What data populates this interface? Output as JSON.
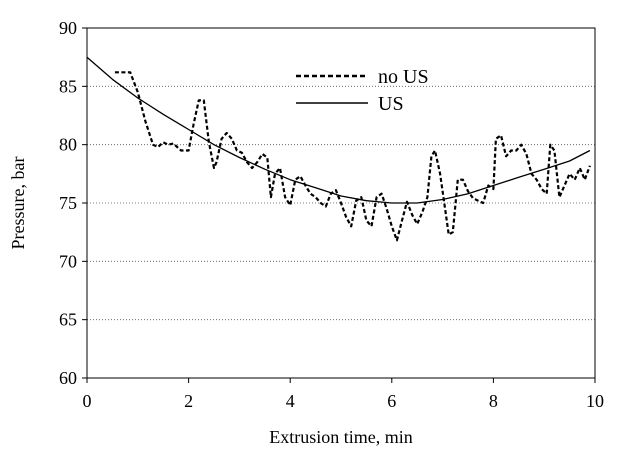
{
  "chart_data": {
    "type": "line",
    "title": "",
    "xlabel": "Extrusion time, min",
    "ylabel": "Pressure, bar",
    "xlim": [
      0,
      10
    ],
    "ylim": [
      60,
      90
    ],
    "x_ticks": [
      "0",
      "2",
      "4",
      "6",
      "8",
      "10"
    ],
    "y_ticks": [
      "60",
      "65",
      "70",
      "75",
      "80",
      "85",
      "90"
    ],
    "grid": "horizontal dotted",
    "legend_placement": "top-center",
    "series": [
      {
        "name": "no US",
        "style": "dashed",
        "color": "#000000",
        "x": [
          0.55,
          0.7,
          0.85,
          1.0,
          1.15,
          1.3,
          1.4,
          1.5,
          1.6,
          1.7,
          1.85,
          2.0,
          2.1,
          2.2,
          2.3,
          2.4,
          2.5,
          2.55,
          2.65,
          2.75,
          2.85,
          2.95,
          3.05,
          3.15,
          3.25,
          3.35,
          3.45,
          3.55,
          3.62,
          3.7,
          3.8,
          3.9,
          4.0,
          4.1,
          4.2,
          4.3,
          4.4,
          4.5,
          4.6,
          4.7,
          4.8,
          4.9,
          5.0,
          5.1,
          5.2,
          5.3,
          5.4,
          5.5,
          5.6,
          5.7,
          5.8,
          5.9,
          6.0,
          6.1,
          6.2,
          6.3,
          6.4,
          6.5,
          6.6,
          6.7,
          6.78,
          6.85,
          6.95,
          7.05,
          7.12,
          7.2,
          7.3,
          7.4,
          7.5,
          7.6,
          7.7,
          7.8,
          7.9,
          8.0,
          8.05,
          8.15,
          8.25,
          8.35,
          8.45,
          8.55,
          8.65,
          8.75,
          8.85,
          8.95,
          9.05,
          9.12,
          9.2,
          9.3,
          9.4,
          9.5,
          9.6,
          9.7,
          9.8,
          9.9
        ],
        "y": [
          86.2,
          86.2,
          86.2,
          84.5,
          82.0,
          80.0,
          79.8,
          80.2,
          80.0,
          80.1,
          79.5,
          79.5,
          81.8,
          83.8,
          83.8,
          80.2,
          78.0,
          78.5,
          80.5,
          81.0,
          80.5,
          79.5,
          79.3,
          78.5,
          78.0,
          78.5,
          79.2,
          78.9,
          75.5,
          77.5,
          78.0,
          75.5,
          74.8,
          77.0,
          77.3,
          76.5,
          75.8,
          75.5,
          75.0,
          74.7,
          75.8,
          76.1,
          75.0,
          73.8,
          73.0,
          75.2,
          75.5,
          73.5,
          73.0,
          75.5,
          75.8,
          74.5,
          73.0,
          71.8,
          73.5,
          75.1,
          74.0,
          73.2,
          74.2,
          75.5,
          79.0,
          79.5,
          77.5,
          74.5,
          72.3,
          72.5,
          77.0,
          77.0,
          76.0,
          75.4,
          75.2,
          75.0,
          76.5,
          76.2,
          80.5,
          80.8,
          79.0,
          79.5,
          79.5,
          80.0,
          79.2,
          77.5,
          77.0,
          76.2,
          75.8,
          80.0,
          79.5,
          75.5,
          76.5,
          77.5,
          77.0,
          78.0,
          77.0,
          78.2
        ]
      },
      {
        "name": "US",
        "style": "solid",
        "color": "#000000",
        "x": [
          0,
          0.5,
          1.0,
          1.5,
          2.0,
          2.5,
          3.0,
          3.5,
          4.0,
          4.5,
          5.0,
          5.5,
          6.0,
          6.5,
          7.0,
          7.5,
          8.0,
          8.5,
          9.0,
          9.5,
          9.9
        ],
        "y": [
          87.5,
          85.6,
          84.0,
          82.6,
          81.3,
          80.0,
          78.9,
          77.9,
          77.0,
          76.3,
          75.6,
          75.2,
          75.0,
          75.0,
          75.3,
          75.8,
          76.5,
          77.2,
          77.9,
          78.6,
          79.5
        ]
      }
    ]
  }
}
